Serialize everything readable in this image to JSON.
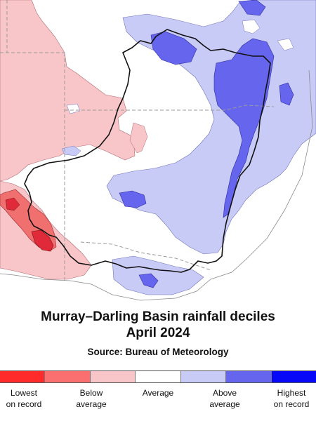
{
  "title": {
    "line1": "Murray–Darling Basin rainfall deciles",
    "line2": "April 2024"
  },
  "source": "Source: Bureau of Meteorology",
  "legend": {
    "swatches": [
      {
        "category": "lowest",
        "color": "#ff2a2a"
      },
      {
        "category": "very-much-below",
        "color": "#fa6f6f"
      },
      {
        "category": "below",
        "color": "#f8c6c8"
      },
      {
        "category": "average",
        "color": "#ffffff"
      },
      {
        "category": "above",
        "color": "#c9cbf7"
      },
      {
        "category": "very-much-above",
        "color": "#6565ee"
      },
      {
        "category": "highest",
        "color": "#0808f8"
      }
    ],
    "labels": {
      "lowest": {
        "line1": "Lowest",
        "line2": "on record"
      },
      "below": {
        "line1": "Below",
        "line2": "average"
      },
      "average": {
        "line1": "Average",
        "line2": ""
      },
      "above": {
        "line1": "Above",
        "line2": "average"
      },
      "highest": {
        "line1": "Highest",
        "line2": "on record"
      }
    }
  },
  "map": {
    "region": "Murray–Darling Basin",
    "colors": {
      "below": "#f8c6c8",
      "very_much_below": "#f07070",
      "lowest": "#e02a3a",
      "above": "#c9cbf7",
      "very_much_above": "#6565ee",
      "average": "#ffffff",
      "basin_outline": "#111111",
      "state_border": "#999999"
    }
  }
}
